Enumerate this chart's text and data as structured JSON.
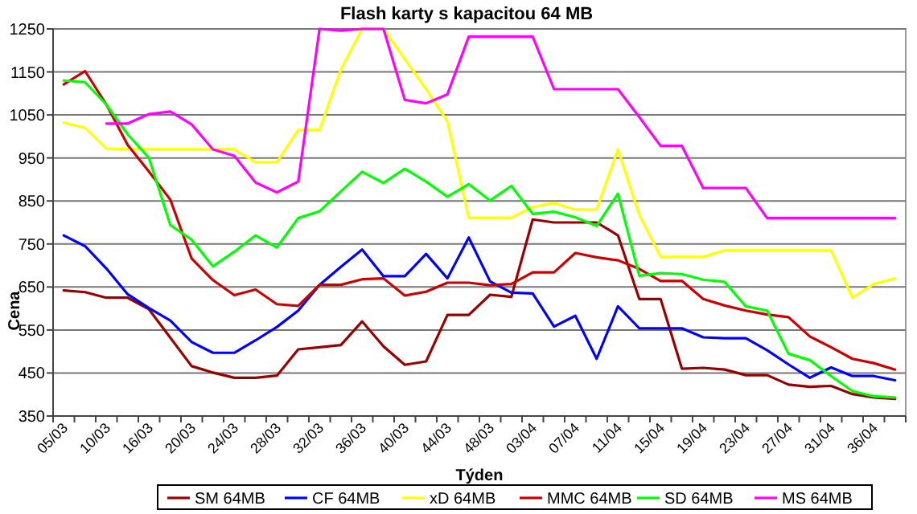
{
  "chart_data": {
    "type": "line",
    "title": "Flash karty s kapacitou 64 MB",
    "xlabel": "Týden",
    "ylabel": "Cena",
    "categories": [
      "05/03",
      null,
      "10/03",
      null,
      "16/03",
      null,
      "20/03",
      null,
      "24/03",
      null,
      "28/03",
      null,
      "32/03",
      null,
      "36/03",
      null,
      "40/03",
      null,
      "44/03",
      null,
      "48/03",
      null,
      "03/04",
      null,
      "07/04",
      null,
      "11/04",
      null,
      "15/04",
      null,
      "19/04",
      null,
      "23/04",
      null,
      "27/04",
      null,
      "31/04",
      null,
      "36/04",
      null
    ],
    "ylim": [
      350,
      1250
    ],
    "yticks": [
      350,
      450,
      550,
      650,
      750,
      850,
      950,
      1050,
      1150,
      1250
    ],
    "grid": "y",
    "legend": "bottom",
    "marker": "none",
    "line_style": "solid",
    "series": [
      {
        "name": "SM 64MB",
        "color": "#990000",
        "values": [
          642,
          638,
          625,
          625,
          598,
          532,
          466,
          451,
          439,
          439,
          444,
          505,
          510,
          515,
          570,
          512,
          469,
          477,
          585,
          585,
          632,
          627,
          807,
          800,
          800,
          800,
          770,
          622,
          622,
          460,
          462,
          458,
          445,
          445,
          423,
          418,
          420,
          401,
          393,
          390
        ]
      },
      {
        "name": "CF 64MB",
        "color": "#0000ff",
        "values": [
          770,
          745,
          693,
          633,
          601,
          572,
          522,
          497,
          497,
          526,
          557,
          595,
          655,
          697,
          737,
          675,
          675,
          727,
          670,
          765,
          663,
          637,
          635,
          558,
          583,
          483,
          605,
          554,
          554,
          554,
          533,
          531,
          531,
          503,
          470,
          439,
          463,
          443,
          443,
          433
        ]
      },
      {
        "name": "xD 64MB",
        "color": "#ffff00",
        "values": [
          1032,
          1020,
          972,
          970,
          970,
          970,
          970,
          970,
          970,
          940,
          940,
          1015,
          1015,
          1155,
          1250,
          1250,
          1180,
          1110,
          1035,
          811,
          811,
          811,
          836,
          845,
          830,
          830,
          970,
          818,
          720,
          720,
          720,
          735,
          735,
          735,
          735,
          735,
          735,
          625,
          657,
          670
        ]
      },
      {
        "name": "MMC 64MB",
        "color": "#cc0000",
        "values": [
          1121,
          1152,
          1074,
          980,
          918,
          853,
          716,
          666,
          631,
          644,
          610,
          606,
          655,
          655,
          668,
          670,
          630,
          639,
          660,
          660,
          654,
          657,
          684,
          684,
          729,
          719,
          712,
          692,
          664,
          664,
          622,
          607,
          595,
          586,
          580,
          535,
          510,
          483,
          473,
          458
        ]
      },
      {
        "name": "SD 64MB",
        "color": "#00ff00",
        "values": [
          1130,
          1126,
          1074,
          1005,
          950,
          794,
          760,
          698,
          732,
          770,
          742,
          810,
          826,
          872,
          918,
          892,
          925,
          895,
          860,
          889,
          851,
          885,
          820,
          825,
          812,
          792,
          867,
          676,
          682,
          680,
          667,
          662,
          605,
          595,
          495,
          480,
          443,
          408,
          396,
          393
        ]
      },
      {
        "name": "MS 64MB",
        "color": "#ff00ff",
        "values": [
          null,
          null,
          1030,
          1030,
          1052,
          1058,
          1028,
          970,
          955,
          893,
          870,
          895,
          1250,
          1246,
          1250,
          1250,
          1085,
          1077,
          1098,
          1232,
          1232,
          1232,
          1232,
          1110,
          1110,
          1110,
          1110,
          1045,
          978,
          978,
          880,
          880,
          880,
          810,
          810,
          810,
          810,
          810,
          810,
          810
        ]
      }
    ]
  }
}
